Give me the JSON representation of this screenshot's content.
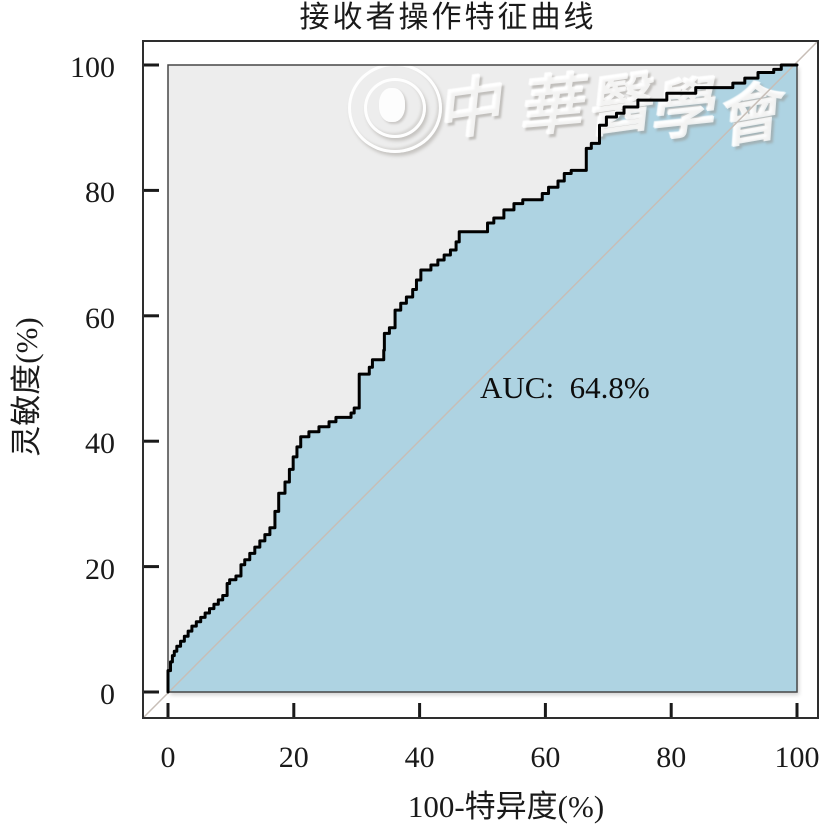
{
  "chart_data": {
    "type": "line",
    "subtype": "roc-step-curve",
    "title": "接收者操作特征曲线",
    "xlabel": "100-特异度(%)",
    "ylabel": "灵敏度(%)",
    "xlim": [
      0,
      100
    ],
    "ylim": [
      0,
      100
    ],
    "x_ticks": [
      0,
      20,
      40,
      60,
      80,
      100
    ],
    "y_ticks": [
      0,
      20,
      40,
      60,
      80,
      100
    ],
    "grid": false,
    "legend": "none",
    "auc_value": 64.8,
    "auc_label": "AUC:  64.8%",
    "diagonal_reference": true,
    "colors": {
      "fill_under_curve": "#aed3e2",
      "plot_background": "#ededed",
      "curve": "#000000",
      "diagonal": "#c7beb7",
      "outer_frame": "#2e2e2e",
      "inner_frame": "#474747",
      "tick": "#1a1a1a",
      "text": "#1a1a1a",
      "page_background": "#ffffff"
    },
    "roc_points": [
      [
        0,
        0
      ],
      [
        0,
        1.9
      ],
      [
        0.4,
        3.4
      ],
      [
        0.7,
        4.8
      ],
      [
        1.0,
        5.8
      ],
      [
        1.4,
        6.5
      ],
      [
        2.0,
        7.3
      ],
      [
        2.6,
        8.1
      ],
      [
        3.2,
        8.9
      ],
      [
        3.8,
        9.7
      ],
      [
        4.5,
        10.5
      ],
      [
        5.2,
        11.2
      ],
      [
        5.9,
        11.9
      ],
      [
        6.6,
        12.6
      ],
      [
        7.3,
        13.3
      ],
      [
        8.0,
        14.0
      ],
      [
        8.7,
        14.7
      ],
      [
        9.4,
        15.4
      ],
      [
        9.8,
        17.3
      ],
      [
        10.8,
        17.9
      ],
      [
        11.6,
        18.5
      ],
      [
        12.2,
        20.3
      ],
      [
        13.0,
        21.1
      ],
      [
        13.8,
        22.1
      ],
      [
        14.6,
        23.1
      ],
      [
        15.4,
        24.1
      ],
      [
        16.2,
        25.1
      ],
      [
        17.0,
        26.2
      ],
      [
        17.6,
        28.8
      ],
      [
        18.6,
        31.7
      ],
      [
        19.3,
        33.5
      ],
      [
        19.9,
        35.5
      ],
      [
        20.5,
        37.5
      ],
      [
        21.1,
        39.1
      ],
      [
        22.4,
        40.7
      ],
      [
        24.0,
        41.5
      ],
      [
        25.6,
        42.3
      ],
      [
        26.7,
        43.1
      ],
      [
        29.1,
        43.8
      ],
      [
        29.6,
        44.5
      ],
      [
        30.4,
        45.3
      ],
      [
        32.0,
        50.7
      ],
      [
        32.5,
        51.8
      ],
      [
        34.3,
        53.0
      ],
      [
        34.4,
        54.5
      ],
      [
        35.2,
        57.2
      ],
      [
        36.1,
        58.1
      ],
      [
        37.0,
        60.9
      ],
      [
        37.9,
        62.0
      ],
      [
        38.9,
        63.0
      ],
      [
        39.5,
        64.2
      ],
      [
        40.2,
        65.7
      ],
      [
        41.8,
        67.3
      ],
      [
        42.9,
        68.1
      ],
      [
        43.9,
        68.9
      ],
      [
        44.9,
        69.7
      ],
      [
        45.8,
        70.5
      ],
      [
        46.3,
        71.8
      ],
      [
        50.8,
        73.4
      ],
      [
        51.8,
        74.8
      ],
      [
        53.4,
        75.6
      ],
      [
        55.0,
        76.9
      ],
      [
        56.4,
        77.9
      ],
      [
        59.5,
        78.5
      ],
      [
        60.5,
        79.5
      ],
      [
        62.0,
        80.5
      ],
      [
        63.0,
        81.5
      ],
      [
        64.1,
        82.7
      ],
      [
        66.5,
        83.2
      ],
      [
        67.3,
        86.7
      ],
      [
        68.6,
        87.5
      ],
      [
        69.7,
        90.4
      ],
      [
        71.3,
        91.7
      ],
      [
        72.5,
        92.3
      ],
      [
        74.7,
        93.3
      ],
      [
        79.3,
        94.4
      ],
      [
        83.9,
        95.5
      ],
      [
        89.8,
        96.4
      ],
      [
        91.7,
        97.1
      ],
      [
        93.8,
        97.9
      ],
      [
        96.3,
        98.8
      ],
      [
        97.5,
        99.3
      ],
      [
        99.5,
        100
      ],
      [
        100,
        100
      ]
    ]
  },
  "watermark": {
    "text": "中華醫學會",
    "logo": "chinese-medical-association-seal"
  }
}
